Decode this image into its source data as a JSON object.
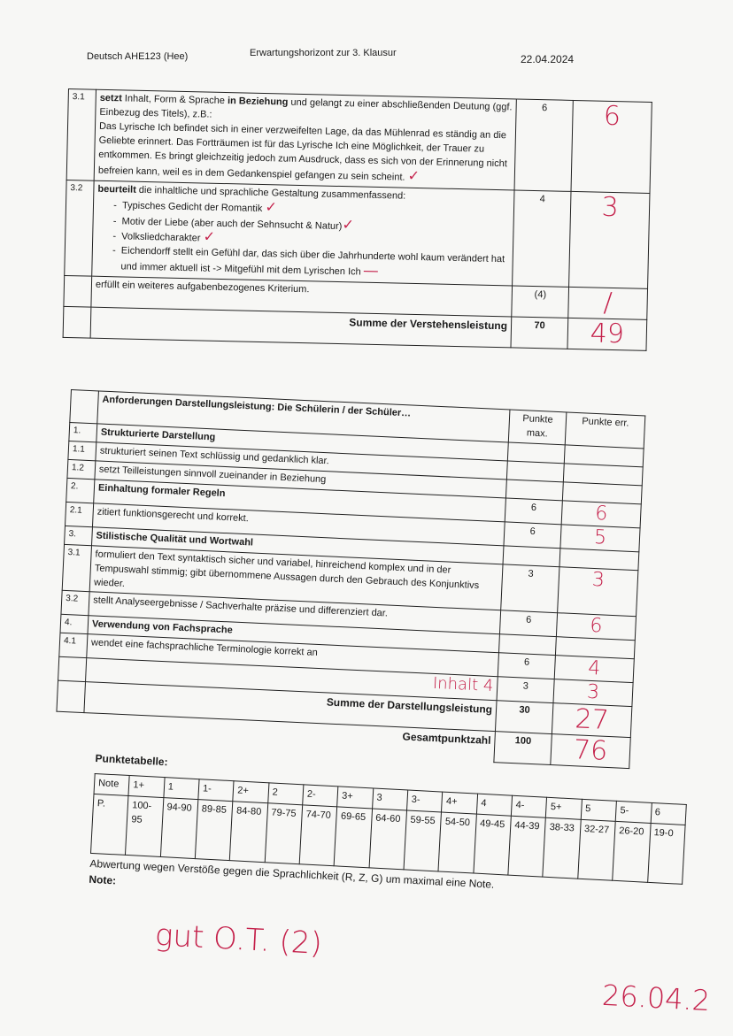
{
  "header": {
    "course": "Deutsch AHE123 (Hee)",
    "title": "Erwartungshorizont zur 3. Klausur",
    "date": "22.04.2024"
  },
  "verstehen": {
    "rows": [
      {
        "num": "3.1",
        "lead": "setzt",
        "text1": " Inhalt, Form & Sprache ",
        "bold2": "in Beziehung",
        "text2": " und gelangt zu einer abschließenden Deutung (ggf. Einbezug des Titels), z.B.:",
        "detail": "Das Lyrische Ich befindet sich in einer verzweifelten Lage, da das Mühlenrad es ständig an die Geliebte erinnert. Das Fortträumen ist für das Lyrische Ich eine Möglichkeit, der Trauer zu entkommen. Es bringt gleichzeitig jedoch zum Ausdruck, dass es sich von der Erinnerung nicht befreien kann, weil es in dem Gedankenspiel gefangen zu sein scheint.",
        "max": "6",
        "err": "6"
      },
      {
        "num": "3.2",
        "lead": "beurteilt",
        "text1": " die inhaltliche und sprachliche Gestaltung zusammenfassend:",
        "bullets": [
          "Typisches Gedicht der Romantik",
          "Motiv der Liebe (aber auch der Sehnsucht & Natur)",
          "Volksliedcharakter",
          "Eichendorff stellt ein Gefühl dar, das sich über die Jahrhunderte wohl kaum verändert hat und immer aktuell ist -> Mitgefühl mit dem Lyrischen Ich"
        ],
        "max": "4",
        "err": "3"
      }
    ],
    "extra": {
      "text": "erfüllt ein weiteres aufgabenbezogenes Kriterium.",
      "max": "(4)",
      "err": "/"
    },
    "sum": {
      "label": "Summe der Verstehensleistung",
      "max": "70",
      "err": "49"
    },
    "checkmark": "✓",
    "dash": "—"
  },
  "darstellung": {
    "heading": "Anforderungen Darstellungsleistung: Die Schülerin / der Schüler…",
    "col_max": "Punkte max.",
    "col_err": "Punkte err.",
    "rows": [
      {
        "num": "1.",
        "text": "Strukturierte Darstellung",
        "bold": true
      },
      {
        "num": "1.1",
        "text": "strukturiert seinen Text schlüssig und gedanklich klar."
      },
      {
        "num": "1.2",
        "text": "setzt Teilleistungen sinnvoll zueinander in Beziehung"
      },
      {
        "num": "2.",
        "text": "Einhaltung formaler Regeln",
        "bold": true,
        "max": "6",
        "err": "6"
      },
      {
        "num": "2.1",
        "text": "zitiert funktionsgerecht und korrekt.",
        "max": "6",
        "err": "5"
      },
      {
        "num": "3.",
        "text": "Stilistische Qualität und Wortwahl",
        "bold": true
      },
      {
        "num": "3.1",
        "text": "formuliert den Text syntaktisch sicher und variabel, hinreichend komplex und in der Tempuswahl stimmig; gibt übernommene Aussagen durch den Gebrauch des Konjunktivs wieder.",
        "max": "3",
        "err": "3"
      },
      {
        "num": "3.2",
        "text": "stellt Analyseergebnisse / Sachverhalte präzise und differenziert dar.",
        "max": "6",
        "err": "6"
      },
      {
        "num": "4.",
        "text": "Verwendung von Fachsprache",
        "bold": true
      },
      {
        "num": "4.1",
        "text": "wendet eine fachsprachliche Terminologie korrekt an",
        "max": "6",
        "err": "4"
      }
    ],
    "annotation": "Inhalt 4",
    "extra": {
      "max": "3",
      "err": "3"
    },
    "sum": {
      "label": "Summe der Darstellungsleistung",
      "max": "30",
      "err": "27"
    },
    "total": {
      "label": "Gesamtpunktzahl",
      "max": "100",
      "err": "76"
    }
  },
  "punktetabelle": {
    "title": "Punktetabelle:",
    "note_label": "Note",
    "p_label": "P.",
    "notes": [
      "1+",
      "1",
      "1-",
      "2+",
      "2",
      "2-",
      "3+",
      "3",
      "3-",
      "4+",
      "4",
      "4-",
      "5+",
      "5",
      "5-",
      "6"
    ],
    "points": [
      "100-95",
      "94-90",
      "89-85",
      "84-80",
      "79-75",
      "74-70",
      "69-65",
      "64-60",
      "59-55",
      "54-50",
      "49-45",
      "44-39",
      "38-33",
      "32-27",
      "26-20",
      "19-0"
    ]
  },
  "footer": {
    "abwertung": "Abwertung wegen Verstöße gegen die Sprachlichkeit (R, Z, G) um maximal eine Note.",
    "note_label": "Note:",
    "grade_handwritten": "gut O.T. (2)",
    "date_handwritten": "26.04.2"
  }
}
